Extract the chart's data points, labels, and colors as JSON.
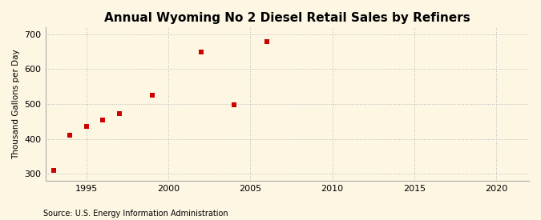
{
  "title": "Annual Wyoming No 2 Diesel Retail Sales by Refiners",
  "ylabel": "Thousand Gallons per Day",
  "source": "Source: U.S. Energy Information Administration",
  "background_color": "#fdf6e3",
  "plot_bg_color": "#fdf6e3",
  "x_data": [
    1993,
    1994,
    1995,
    1996,
    1997,
    1999,
    2002,
    2004,
    2006
  ],
  "y_data": [
    310,
    410,
    435,
    453,
    472,
    525,
    648,
    497,
    678
  ],
  "marker_color": "#cc0000",
  "marker": "s",
  "marker_size": 4,
  "xlim": [
    1992.5,
    2022
  ],
  "ylim": [
    280,
    720
  ],
  "xticks": [
    1995,
    2000,
    2005,
    2010,
    2015,
    2020
  ],
  "yticks": [
    300,
    400,
    500,
    600,
    700
  ],
  "grid_color": "#bbbbbb",
  "grid_linestyle": ":",
  "title_fontsize": 11,
  "label_fontsize": 7.5,
  "tick_fontsize": 8,
  "source_fontsize": 7
}
